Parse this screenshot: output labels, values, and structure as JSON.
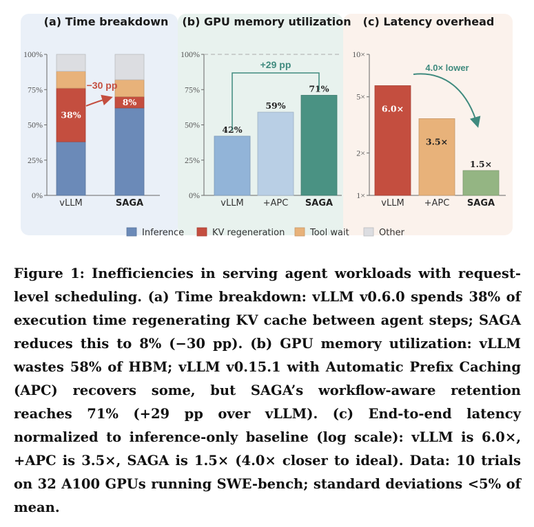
{
  "legend": [
    {
      "label": "Inference",
      "color": "#6b8ab8"
    },
    {
      "label": "KV regeneration",
      "color": "#c44e3f"
    },
    {
      "label": "Tool wait",
      "color": "#e8b27a"
    },
    {
      "label": "Other",
      "color": "#dcdde1"
    }
  ],
  "caption": "Figure 1: Inefficiencies in serving agent workloads with request-level scheduling. (a) Time breakdown: vLLM v0.6.0 spends 38% of execution time regenerating KV cache between agent steps; SAGA reduces this to 8% (−30 pp). (b) GPU memory utilization: vLLM wastes 58% of HBM; vLLM v0.15.1 with Automatic Prefix Caching (APC) recovers some, but SAGA’s workflow-aware retention reaches 71% (+29 pp over vLLM). (c) End-to-end latency normalized to inference-only baseline (log scale): vLLM is 6.0×, +APC is 3.5×, SAGA is 1.5× (4.0× closer to ideal). Data: 10 trials on 32 A100 GPUs running SWE-bench; standard deviations <5% of mean.",
  "chart_data": [
    {
      "type": "bar",
      "stacked": true,
      "title": "(a) Time breakdown",
      "categories": [
        "vLLM",
        "SAGA"
      ],
      "bold_categories": [
        "SAGA"
      ],
      "ylim": [
        0,
        100
      ],
      "yticks": [
        0,
        25,
        50,
        75,
        100
      ],
      "ytick_labels": [
        "0%",
        "25%",
        "50%",
        "75%",
        "100%"
      ],
      "series": [
        {
          "name": "Inference",
          "color": "#6b8ab8",
          "values": [
            38,
            62
          ]
        },
        {
          "name": "KV regeneration",
          "color": "#c44e3f",
          "values": [
            38,
            8
          ]
        },
        {
          "name": "Tool wait",
          "color": "#e8b27a",
          "values": [
            12,
            12
          ]
        },
        {
          "name": "Other",
          "color": "#dcdde1",
          "values": [
            12,
            18
          ]
        }
      ],
      "data_labels": [
        "38%",
        "8%"
      ],
      "annotation": "−30 pp",
      "background": "#eaf0f8"
    },
    {
      "type": "bar",
      "title": "(b) GPU memory utilization",
      "categories": [
        "vLLM",
        "+APC",
        "SAGA"
      ],
      "bold_categories": [
        "SAGA"
      ],
      "values": [
        42,
        59,
        71
      ],
      "value_labels": [
        "42%",
        "59%",
        "71%"
      ],
      "colors": [
        "#92b4d8",
        "#b9cfe5",
        "#4a9283"
      ],
      "ylim": [
        0,
        100
      ],
      "yticks": [
        0,
        25,
        50,
        75,
        100
      ],
      "ytick_labels": [
        "0%",
        "25%",
        "50%",
        "75%",
        "100%"
      ],
      "reference_line": 100,
      "annotation": "+29 pp",
      "background": "#e8f2ee"
    },
    {
      "type": "bar",
      "title": "(c) Latency overhead",
      "categories": [
        "vLLM",
        "+APC",
        "SAGA"
      ],
      "bold_categories": [
        "SAGA"
      ],
      "values": [
        6.0,
        3.5,
        1.5
      ],
      "value_labels": [
        "6.0×",
        "3.5×",
        "1.5×"
      ],
      "colors": [
        "#c44e3f",
        "#e8b27a",
        "#94b583"
      ],
      "yscale": "log",
      "ylim": [
        1,
        10
      ],
      "yticks": [
        1,
        2,
        5,
        10
      ],
      "ytick_labels": [
        "1×",
        "2×",
        "5×",
        "10×"
      ],
      "annotation": "4.0× lower",
      "background": "#fbf2ec"
    }
  ]
}
